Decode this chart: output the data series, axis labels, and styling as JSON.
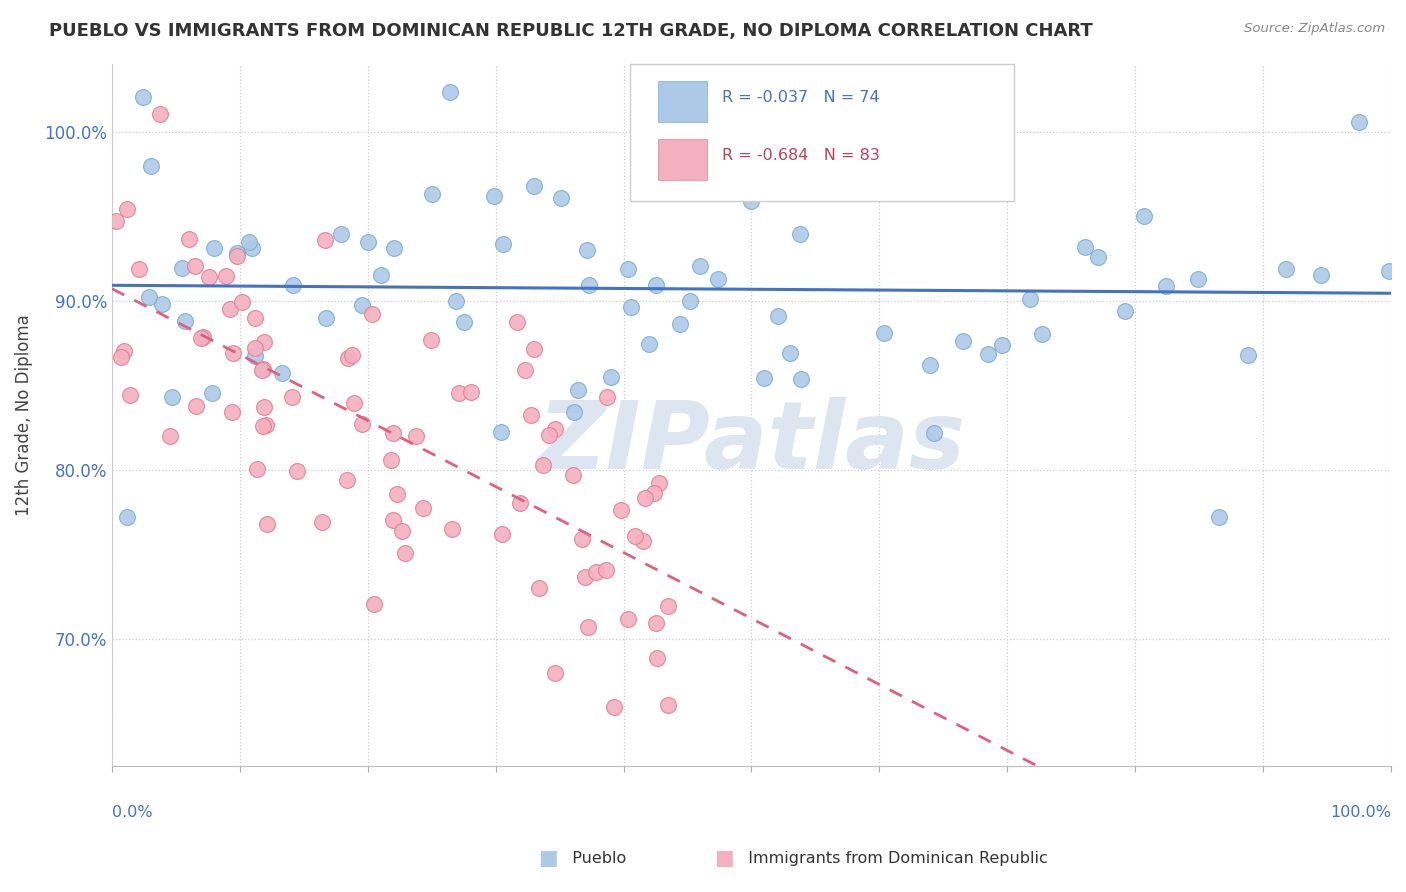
{
  "title": "PUEBLO VS IMMIGRANTS FROM DOMINICAN REPUBLIC 12TH GRADE, NO DIPLOMA CORRELATION CHART",
  "source": "Source: ZipAtlas.com",
  "ylabel": "12th Grade, No Diploma",
  "ytick_labels": [
    "70.0%",
    "80.0%",
    "90.0%",
    "100.0%"
  ],
  "ytick_values": [
    0.7,
    0.8,
    0.9,
    1.0
  ],
  "pueblo_R": -0.037,
  "pueblo_N": 74,
  "dr_R": -0.684,
  "dr_N": 83,
  "pueblo_color": "#adc9e8",
  "pueblo_edge_color": "#7bafd4",
  "pueblo_line_color": "#4472c4",
  "dr_color": "#f4b0c0",
  "dr_edge_color": "#e08090",
  "dr_line_color": "#e06080",
  "watermark_color": "#dde6f0",
  "legend_r1": "R = -0.037",
  "legend_n1": "N = 74",
  "legend_r2": "R = -0.684",
  "legend_n2": "N = 83",
  "legend_r1_color": "#4472c4",
  "legend_n1_color": "#4472c4",
  "legend_r2_color": "#c0405a",
  "legend_n2_color": "#333333"
}
